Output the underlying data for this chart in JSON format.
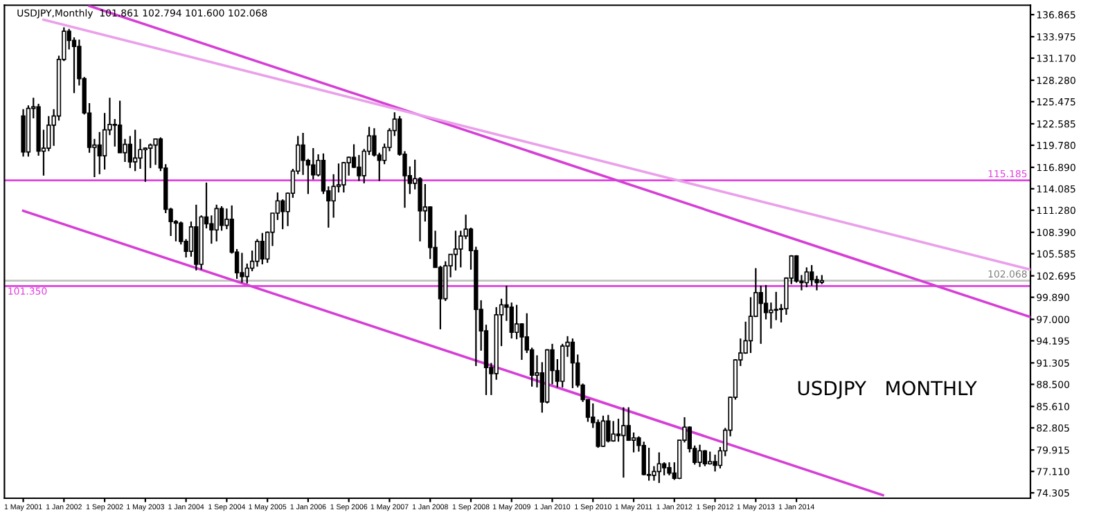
{
  "chart_data": {
    "type": "candlestick",
    "title": "USDJPY,Monthly  101.861 102.794 101.600 102.068",
    "annotations": [
      "USDJPY   MONTHLY"
    ],
    "x": [
      "2001-05",
      "2001-06",
      "2001-07",
      "2001-08",
      "2001-09",
      "2001-10",
      "2001-11",
      "2001-12",
      "2002-01",
      "2002-02",
      "2002-03",
      "2002-04",
      "2002-05",
      "2002-06",
      "2002-07",
      "2002-08",
      "2002-09",
      "2002-10",
      "2002-11",
      "2002-12",
      "2003-01",
      "2003-02",
      "2003-03",
      "2003-04",
      "2003-05",
      "2003-06",
      "2003-07",
      "2003-08",
      "2003-09",
      "2003-10",
      "2003-11",
      "2003-12",
      "2004-01",
      "2004-02",
      "2004-03",
      "2004-04",
      "2004-05",
      "2004-06",
      "2004-07",
      "2004-08",
      "2004-09",
      "2004-10",
      "2004-11",
      "2004-12",
      "2005-01",
      "2005-02",
      "2005-03",
      "2005-04",
      "2005-05",
      "2005-06",
      "2005-07",
      "2005-08",
      "2005-09",
      "2005-10",
      "2005-11",
      "2005-12",
      "2006-01",
      "2006-02",
      "2006-03",
      "2006-04",
      "2006-05",
      "2006-06",
      "2006-07",
      "2006-08",
      "2006-09",
      "2006-10",
      "2006-11",
      "2006-12",
      "2007-01",
      "2007-02",
      "2007-03",
      "2007-04",
      "2007-05",
      "2007-06",
      "2007-07",
      "2007-08",
      "2007-09",
      "2007-10",
      "2007-11",
      "2007-12",
      "2008-01",
      "2008-02",
      "2008-03",
      "2008-04",
      "2008-05",
      "2008-06",
      "2008-07",
      "2008-08",
      "2008-09",
      "2008-10",
      "2008-11",
      "2008-12",
      "2009-01",
      "2009-02",
      "2009-03",
      "2009-04",
      "2009-05",
      "2009-06",
      "2009-07",
      "2009-08",
      "2009-09",
      "2009-10",
      "2009-11",
      "2009-12",
      "2010-01",
      "2010-02",
      "2010-03",
      "2010-04",
      "2010-05",
      "2010-06",
      "2010-07",
      "2010-08",
      "2010-09",
      "2010-10",
      "2010-11",
      "2010-12",
      "2011-01",
      "2011-02",
      "2011-03",
      "2011-04",
      "2011-05",
      "2011-06",
      "2011-07",
      "2011-08",
      "2011-09",
      "2011-10",
      "2011-11",
      "2011-12",
      "2012-01",
      "2012-02",
      "2012-03",
      "2012-04",
      "2012-05",
      "2012-06",
      "2012-07",
      "2012-08",
      "2012-09",
      "2012-10",
      "2012-11",
      "2012-12",
      "2013-01",
      "2013-02",
      "2013-03",
      "2013-04",
      "2013-05",
      "2013-06",
      "2013-07",
      "2013-08",
      "2013-09",
      "2013-10",
      "2013-11",
      "2013-12",
      "2014-01",
      "2014-02",
      "2014-03",
      "2014-04",
      "2014-05",
      "2014-06"
    ],
    "ohlc": [
      [
        123.6,
        124.5,
        118.3,
        118.9
      ],
      [
        118.9,
        125.0,
        118.3,
        124.6
      ],
      [
        124.6,
        126.0,
        123.3,
        124.8
      ],
      [
        124.8,
        125.2,
        118.4,
        119.0
      ],
      [
        119.0,
        121.8,
        115.8,
        119.4
      ],
      [
        119.4,
        123.6,
        119.0,
        122.4
      ],
      [
        122.4,
        124.5,
        119.7,
        123.6
      ],
      [
        123.6,
        131.5,
        123.0,
        131.0
      ],
      [
        131.0,
        135.2,
        130.8,
        134.7
      ],
      [
        134.7,
        135.0,
        132.3,
        133.5
      ],
      [
        133.5,
        133.9,
        126.6,
        132.7
      ],
      [
        132.7,
        133.6,
        127.6,
        128.5
      ],
      [
        128.5,
        128.7,
        123.8,
        124.0
      ],
      [
        124.0,
        125.3,
        118.8,
        119.5
      ],
      [
        119.5,
        120.6,
        115.6,
        119.8
      ],
      [
        119.8,
        121.5,
        116.0,
        118.4
      ],
      [
        118.4,
        124.0,
        116.6,
        121.8
      ],
      [
        121.8,
        126.0,
        121.1,
        122.5
      ],
      [
        122.5,
        123.2,
        119.6,
        122.4
      ],
      [
        122.4,
        125.6,
        118.8,
        118.8
      ],
      [
        118.8,
        120.6,
        117.6,
        119.9
      ],
      [
        119.9,
        121.0,
        116.8,
        117.6
      ],
      [
        117.6,
        121.8,
        116.4,
        118.1
      ],
      [
        118.1,
        120.6,
        116.7,
        119.2
      ],
      [
        119.2,
        119.5,
        115.0,
        119.4
      ],
      [
        119.4,
        120.0,
        116.8,
        119.8
      ],
      [
        119.8,
        120.6,
        117.2,
        120.6
      ],
      [
        120.6,
        120.8,
        116.4,
        116.8
      ],
      [
        116.8,
        117.3,
        110.9,
        111.4
      ],
      [
        111.4,
        111.6,
        107.9,
        109.8
      ],
      [
        109.8,
        110.0,
        107.2,
        109.6
      ],
      [
        109.6,
        109.8,
        106.8,
        107.2
      ],
      [
        107.2,
        107.5,
        105.1,
        105.9
      ],
      [
        105.9,
        109.8,
        105.2,
        109.1
      ],
      [
        109.1,
        112.0,
        103.4,
        104.2
      ],
      [
        104.2,
        110.6,
        103.5,
        110.4
      ],
      [
        110.4,
        114.9,
        108.9,
        109.5
      ],
      [
        109.5,
        110.6,
        106.9,
        108.7
      ],
      [
        108.7,
        112.0,
        107.2,
        111.5
      ],
      [
        111.5,
        111.8,
        108.6,
        109.3
      ],
      [
        109.3,
        111.5,
        108.8,
        110.1
      ],
      [
        110.1,
        111.9,
        105.6,
        105.8
      ],
      [
        105.8,
        106.2,
        102.3,
        103.1
      ],
      [
        103.1,
        105.7,
        101.8,
        102.6
      ],
      [
        102.6,
        104.3,
        101.7,
        103.7
      ],
      [
        103.7,
        106.0,
        103.3,
        104.6
      ],
      [
        104.6,
        107.5,
        103.9,
        107.2
      ],
      [
        107.2,
        108.3,
        104.2,
        104.9
      ],
      [
        104.9,
        108.5,
        104.4,
        108.4
      ],
      [
        108.4,
        110.9,
        106.6,
        110.9
      ],
      [
        110.9,
        113.6,
        110.0,
        112.5
      ],
      [
        112.5,
        112.7,
        108.8,
        111.1
      ],
      [
        111.1,
        113.6,
        109.2,
        113.5
      ],
      [
        113.5,
        116.7,
        112.9,
        116.4
      ],
      [
        116.4,
        121.0,
        116.0,
        119.8
      ],
      [
        119.8,
        121.4,
        115.9,
        117.8
      ],
      [
        117.8,
        118.0,
        113.4,
        117.2
      ],
      [
        117.2,
        119.4,
        115.3,
        115.9
      ],
      [
        115.9,
        118.6,
        115.7,
        117.8
      ],
      [
        117.8,
        118.7,
        113.4,
        113.8
      ],
      [
        113.8,
        114.4,
        109.0,
        112.5
      ],
      [
        112.5,
        116.0,
        110.3,
        114.4
      ],
      [
        114.4,
        117.4,
        113.6,
        114.6
      ],
      [
        114.6,
        117.6,
        113.6,
        117.5
      ],
      [
        117.5,
        118.3,
        115.8,
        118.2
      ],
      [
        118.2,
        119.9,
        116.8,
        116.9
      ],
      [
        116.9,
        118.5,
        115.1,
        115.8
      ],
      [
        115.8,
        119.3,
        114.8,
        119.0
      ],
      [
        119.0,
        122.2,
        118.5,
        121.0
      ],
      [
        121.0,
        122.0,
        118.3,
        118.5
      ],
      [
        118.5,
        118.8,
        115.1,
        117.8
      ],
      [
        117.8,
        120.0,
        117.3,
        119.5
      ],
      [
        119.5,
        122.0,
        119.0,
        121.7
      ],
      [
        121.7,
        124.1,
        121.0,
        123.2
      ],
      [
        123.2,
        123.6,
        118.4,
        118.6
      ],
      [
        118.6,
        119.0,
        111.6,
        115.8
      ],
      [
        115.8,
        117.0,
        113.4,
        114.8
      ],
      [
        114.8,
        117.9,
        114.0,
        115.4
      ],
      [
        115.4,
        115.6,
        107.2,
        111.2
      ],
      [
        111.2,
        114.7,
        109.8,
        111.7
      ],
      [
        111.7,
        111.8,
        104.9,
        106.4
      ],
      [
        106.4,
        108.6,
        103.8,
        103.8
      ],
      [
        103.8,
        104.0,
        95.7,
        99.7
      ],
      [
        99.7,
        104.6,
        99.4,
        104.0
      ],
      [
        104.0,
        105.5,
        102.5,
        105.5
      ],
      [
        105.5,
        108.6,
        103.4,
        106.2
      ],
      [
        106.2,
        108.6,
        103.8,
        107.9
      ],
      [
        107.9,
        110.7,
        107.5,
        108.8
      ],
      [
        108.8,
        109.0,
        103.5,
        106.0
      ],
      [
        106.0,
        106.5,
        90.9,
        98.3
      ],
      [
        98.3,
        99.5,
        92.9,
        95.5
      ],
      [
        95.5,
        96.3,
        87.1,
        90.7
      ],
      [
        90.7,
        91.3,
        87.1,
        89.9
      ],
      [
        89.9,
        98.6,
        89.1,
        97.6
      ],
      [
        97.6,
        99.7,
        93.5,
        98.9
      ],
      [
        98.9,
        101.4,
        96.8,
        98.6
      ],
      [
        98.6,
        99.2,
        94.5,
        95.3
      ],
      [
        95.3,
        98.9,
        94.4,
        96.4
      ],
      [
        96.4,
        96.5,
        91.7,
        94.7
      ],
      [
        94.7,
        97.8,
        92.6,
        93.0
      ],
      [
        93.0,
        93.3,
        88.2,
        89.7
      ],
      [
        89.7,
        92.3,
        88.1,
        90.0
      ],
      [
        90.0,
        91.4,
        84.8,
        86.2
      ],
      [
        86.2,
        93.1,
        86.0,
        93.0
      ],
      [
        93.0,
        93.8,
        88.5,
        90.3
      ],
      [
        90.3,
        91.8,
        88.1,
        88.9
      ],
      [
        88.9,
        93.8,
        88.1,
        93.5
      ],
      [
        93.5,
        94.8,
        92.1,
        94.0
      ],
      [
        94.0,
        94.5,
        88.0,
        91.3
      ],
      [
        91.3,
        92.4,
        88.1,
        88.4
      ],
      [
        88.4,
        88.6,
        86.2,
        86.5
      ],
      [
        86.5,
        86.5,
        83.6,
        84.2
      ],
      [
        84.2,
        86.0,
        82.8,
        83.5
      ],
      [
        83.5,
        83.9,
        80.2,
        80.4
      ],
      [
        80.4,
        84.4,
        80.3,
        83.7
      ],
      [
        83.7,
        84.5,
        80.9,
        81.1
      ],
      [
        81.1,
        83.7,
        81.0,
        82.0
      ],
      [
        82.0,
        84.0,
        81.0,
        81.8
      ],
      [
        81.8,
        85.5,
        76.3,
        83.1
      ],
      [
        83.1,
        85.5,
        81.1,
        81.2
      ],
      [
        81.2,
        82.2,
        79.6,
        81.5
      ],
      [
        81.5,
        81.7,
        79.7,
        80.5
      ],
      [
        80.5,
        81.0,
        76.6,
        76.7
      ],
      [
        76.7,
        80.2,
        75.9,
        76.6
      ],
      [
        76.6,
        77.8,
        75.9,
        77.1
      ],
      [
        77.1,
        79.6,
        75.6,
        78.1
      ],
      [
        78.1,
        78.3,
        76.6,
        77.6
      ],
      [
        77.6,
        78.3,
        76.6,
        76.9
      ],
      [
        76.9,
        78.3,
        76.0,
        76.2
      ],
      [
        76.2,
        81.2,
        76.1,
        81.2
      ],
      [
        81.2,
        84.2,
        80.9,
        82.9
      ],
      [
        82.9,
        83.0,
        79.6,
        80.1
      ],
      [
        80.1,
        80.5,
        78.0,
        78.3
      ],
      [
        78.3,
        80.6,
        77.7,
        79.8
      ],
      [
        79.8,
        79.9,
        77.8,
        78.1
      ],
      [
        78.1,
        79.7,
        78.0,
        78.4
      ],
      [
        78.4,
        79.3,
        77.1,
        77.9
      ],
      [
        77.9,
        80.3,
        77.5,
        79.8
      ],
      [
        79.8,
        82.8,
        79.1,
        82.5
      ],
      [
        82.5,
        86.9,
        81.7,
        86.8
      ],
      [
        86.8,
        91.8,
        86.5,
        91.7
      ],
      [
        91.7,
        94.5,
        90.9,
        92.6
      ],
      [
        92.6,
        96.7,
        92.5,
        94.2
      ],
      [
        94.2,
        99.9,
        92.6,
        97.4
      ],
      [
        97.4,
        103.7,
        97.3,
        100.5
      ],
      [
        100.5,
        101.4,
        93.8,
        99.1
      ],
      [
        99.1,
        101.5,
        97.0,
        97.9
      ],
      [
        97.9,
        99.2,
        95.8,
        98.2
      ],
      [
        98.2,
        100.6,
        96.9,
        98.3
      ],
      [
        98.3,
        99.0,
        96.6,
        98.4
      ],
      [
        98.4,
        102.5,
        97.6,
        102.4
      ],
      [
        102.4,
        105.4,
        101.6,
        105.3
      ],
      [
        105.3,
        105.4,
        101.8,
        102.0
      ],
      [
        102.0,
        102.8,
        100.8,
        101.8
      ],
      [
        101.8,
        103.8,
        101.2,
        103.2
      ],
      [
        103.2,
        104.1,
        101.4,
        102.2
      ],
      [
        102.2,
        102.7,
        100.8,
        101.8
      ],
      [
        101.861,
        102.794,
        101.6,
        102.068
      ]
    ],
    "series": [
      {
        "type": "line",
        "color": "#d63fd6",
        "x": [
          "2002-06",
          "2017-11"
        ],
        "values": [
          138.0,
          97.3
        ]
      },
      {
        "type": "line",
        "color": "#eaa0ea",
        "x": [
          "2001-09",
          "2017-11"
        ],
        "values": [
          136.2,
          103.5
        ]
      },
      {
        "type": "line",
        "color": "#d63fd6",
        "x": [
          "2001-05",
          "2015-06"
        ],
        "values": [
          111.2,
          74.0
        ]
      }
    ],
    "ref_lines": [
      {
        "axis": "y",
        "value": 115.185,
        "label": "115.185",
        "color": "#e040e0"
      },
      {
        "axis": "y",
        "value": 102.068,
        "label": "102.068",
        "color": "#c0c0c0"
      },
      {
        "axis": "y",
        "value": 101.35,
        "label": "101.350",
        "color": "#e040e0"
      }
    ],
    "xlim": [
      "2001-01-10",
      "2017-11"
    ],
    "xticks": [
      {
        "value": "2001-05",
        "label": "1 May 2001"
      },
      {
        "value": "2002-01",
        "label": "1 Jan 2002"
      },
      {
        "value": "2002-09",
        "label": "1 Sep 2002"
      },
      {
        "value": "2003-05",
        "label": "1 May 2003"
      },
      {
        "value": "2004-01",
        "label": "1 Jan 2004"
      },
      {
        "value": "2004-09",
        "label": "1 Sep 2004"
      },
      {
        "value": "2005-05",
        "label": "1 May 2005"
      },
      {
        "value": "2006-01",
        "label": "1 Jan 2006"
      },
      {
        "value": "2006-09",
        "label": "1 Sep 2006"
      },
      {
        "value": "2007-05",
        "label": "1 May 2007"
      },
      {
        "value": "2008-01",
        "label": "1 Jan 2008"
      },
      {
        "value": "2008-09",
        "label": "1 Sep 2008"
      },
      {
        "value": "2009-05",
        "label": "1 May 2009"
      },
      {
        "value": "2010-01",
        "label": "1 Jan 2010"
      },
      {
        "value": "2010-09",
        "label": "1 Sep 2010"
      },
      {
        "value": "2011-05",
        "label": "1 May 2011"
      },
      {
        "value": "2012-01",
        "label": "1 Jan 2012"
      },
      {
        "value": "2012-09",
        "label": "1 Sep 2012"
      },
      {
        "value": "2013-05",
        "label": "1 May 2013"
      },
      {
        "value": "2014-01",
        "label": "1 Jan 2014"
      }
    ],
    "ylim": [
      73.6,
      138.1
    ],
    "yticks": [
      136.865,
      133.975,
      {
        "value": 131.17,
        "label": "131.170"
      },
      {
        "value": 128.28,
        "label": "128.280"
      },
      125.475,
      122.585,
      {
        "value": 119.78,
        "label": "119.780"
      },
      {
        "value": 116.89,
        "label": "116.890"
      },
      114.085,
      {
        "value": 111.28,
        "label": "111.280"
      },
      {
        "value": 108.39,
        "label": "108.390"
      },
      105.585,
      102.695,
      {
        "value": 99.89,
        "label": "99.890"
      },
      {
        "value": 97.0,
        "label": "97.000"
      },
      94.195,
      91.305,
      {
        "value": 88.5,
        "label": "88.500"
      },
      {
        "value": 85.61,
        "label": "85.610"
      },
      82.805,
      79.915,
      {
        "value": 77.11,
        "label": "77.110"
      },
      74.305
    ],
    "legend": false
  }
}
